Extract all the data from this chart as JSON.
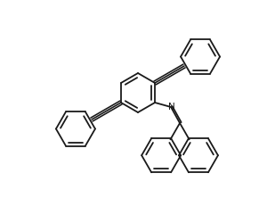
{
  "background_color": "#ffffff",
  "bond_color": "#1a1a1a",
  "lw": 1.3,
  "ring_r": 18,
  "figsize": [
    3.09,
    2.22
  ],
  "dpi": 100
}
